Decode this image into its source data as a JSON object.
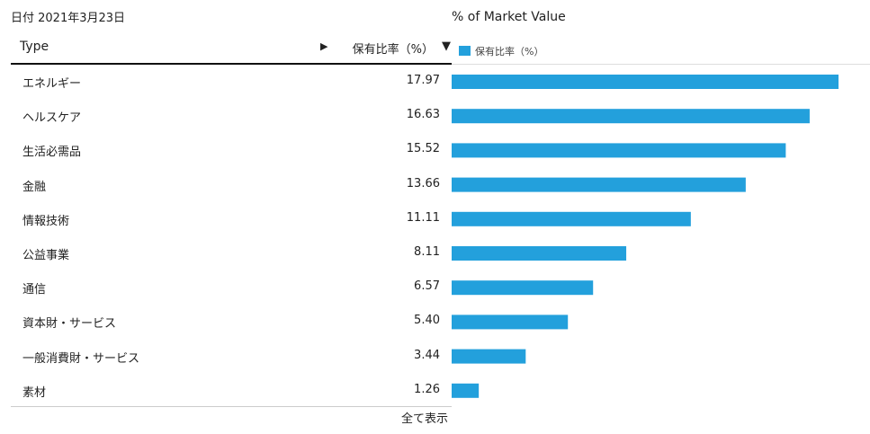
{
  "header": {
    "date_label": "日付 2021年3月23日",
    "chart_title": "% of Market Value",
    "col_type": "Type",
    "col_value": "保有比率（%）",
    "expand_icon": "▶",
    "sort_icon": "▼",
    "legend_label": "保有比率（%）",
    "expand_icon_name": "triangle-right-icon",
    "sort_icon_name": "triangle-down-icon"
  },
  "footer": {
    "show_all": "全て表示"
  },
  "colors": {
    "bar": "#23a0dc"
  },
  "chart_data": {
    "type": "bar",
    "orientation": "horizontal",
    "categories": [
      "エネルギー",
      "ヘルスケア",
      "生活必需品",
      "金融",
      "情報技術",
      "公益事業",
      "通信",
      "資本財・サービス",
      "一般消費財・サービス",
      "素材"
    ],
    "value_labels": [
      "17.97",
      "16.63",
      "15.52",
      "13.66",
      "11.11",
      "8.11",
      "6.57",
      "5.40",
      "3.44",
      "1.26"
    ],
    "series": [
      {
        "name": "保有比率（%）",
        "values": [
          17.97,
          16.63,
          15.52,
          13.66,
          11.11,
          8.11,
          6.57,
          5.4,
          3.44,
          1.26
        ]
      }
    ],
    "title": "% of Market Value",
    "legend": "top-left"
  }
}
